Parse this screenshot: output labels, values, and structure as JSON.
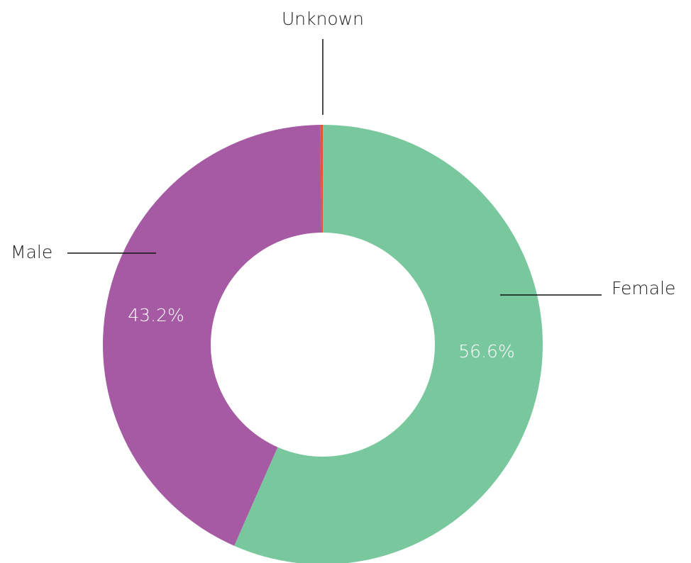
{
  "chart_data": {
    "type": "donut",
    "categories": [
      "Female",
      "Male",
      "Unknown"
    ],
    "values": [
      56.6,
      43.2,
      0.2
    ],
    "value_labels": [
      "56.6%",
      "43.2%",
      null
    ],
    "colors": [
      "#79c89d",
      "#a55aa3",
      "#e0533d"
    ]
  }
}
